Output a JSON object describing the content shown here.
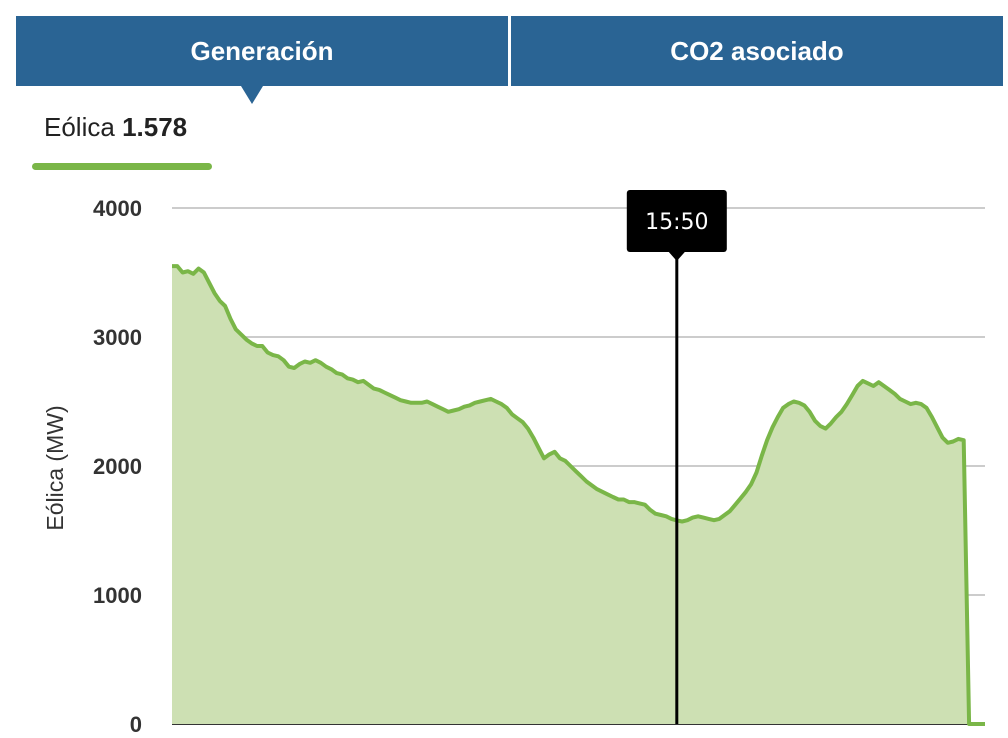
{
  "tabs": [
    {
      "label": "Generación",
      "selected": true
    },
    {
      "label": "CO2 asociado",
      "selected": false
    }
  ],
  "legend": {
    "series": "Eólica",
    "value": "1.578",
    "color": "#7ab648"
  },
  "colors": {
    "tab_bg": "#2a6494",
    "line": "#7ab648",
    "fill": "#cde0b3",
    "grid": "#bbbbbb",
    "cursor": "#000000"
  },
  "chart_data": {
    "type": "area",
    "ylabel": "Eólica (MW)",
    "ylim": [
      0,
      4000
    ],
    "yticks": [
      0,
      1000,
      2000,
      3000,
      4000
    ],
    "grid": true,
    "cursor": {
      "label": "15:50",
      "index": 95
    },
    "series": [
      {
        "name": "Eólica",
        "values": [
          3550,
          3550,
          3500,
          3510,
          3490,
          3530,
          3500,
          3420,
          3340,
          3280,
          3240,
          3140,
          3060,
          3020,
          2980,
          2950,
          2930,
          2930,
          2880,
          2860,
          2850,
          2820,
          2770,
          2760,
          2790,
          2810,
          2800,
          2820,
          2800,
          2770,
          2750,
          2720,
          2710,
          2680,
          2670,
          2650,
          2660,
          2630,
          2600,
          2590,
          2570,
          2550,
          2530,
          2510,
          2500,
          2490,
          2490,
          2490,
          2500,
          2480,
          2460,
          2440,
          2420,
          2430,
          2440,
          2460,
          2470,
          2490,
          2500,
          2510,
          2520,
          2500,
          2480,
          2450,
          2400,
          2370,
          2340,
          2290,
          2220,
          2140,
          2060,
          2090,
          2110,
          2060,
          2040,
          2000,
          1960,
          1920,
          1880,
          1850,
          1820,
          1800,
          1780,
          1760,
          1740,
          1740,
          1720,
          1720,
          1710,
          1700,
          1660,
          1630,
          1620,
          1610,
          1590,
          1578,
          1570,
          1580,
          1600,
          1610,
          1600,
          1590,
          1580,
          1590,
          1620,
          1650,
          1700,
          1750,
          1800,
          1860,
          1950,
          2080,
          2200,
          2300,
          2380,
          2450,
          2480,
          2500,
          2490,
          2470,
          2420,
          2350,
          2310,
          2290,
          2330,
          2380,
          2420,
          2480,
          2550,
          2620,
          2660,
          2640,
          2620,
          2650,
          2620,
          2590,
          2560,
          2520,
          2500,
          2480,
          2490,
          2480,
          2450,
          2380,
          2300,
          2220,
          2180,
          2190,
          2210,
          2200,
          0,
          0,
          0,
          0
        ]
      }
    ]
  }
}
